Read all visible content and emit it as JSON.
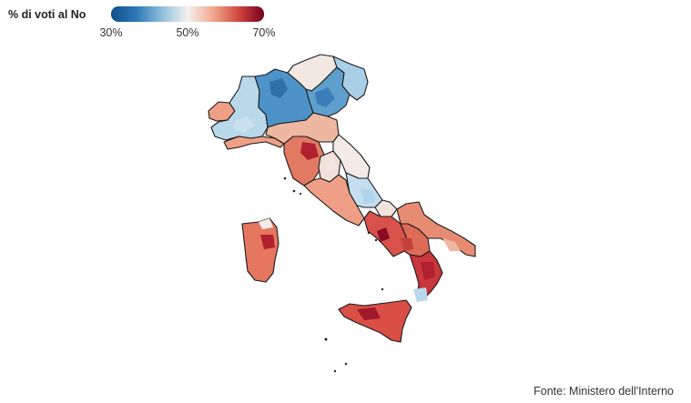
{
  "legend": {
    "title": "% di voti al No",
    "tick_min": "30%",
    "tick_mid": "50%",
    "tick_max": "70%",
    "min": 30,
    "max": 70,
    "colors": [
      "#0e4f8a",
      "#2f78b6",
      "#8fc0dd",
      "#f5f1ee",
      "#f1a88e",
      "#d2473f",
      "#75001e"
    ]
  },
  "source": "Fonte: Ministero dell'Interno",
  "chart_data": {
    "type": "choropleth",
    "metric": "% di voti al No",
    "scale": {
      "min": 30,
      "mid": 50,
      "max": 70
    }
  }
}
